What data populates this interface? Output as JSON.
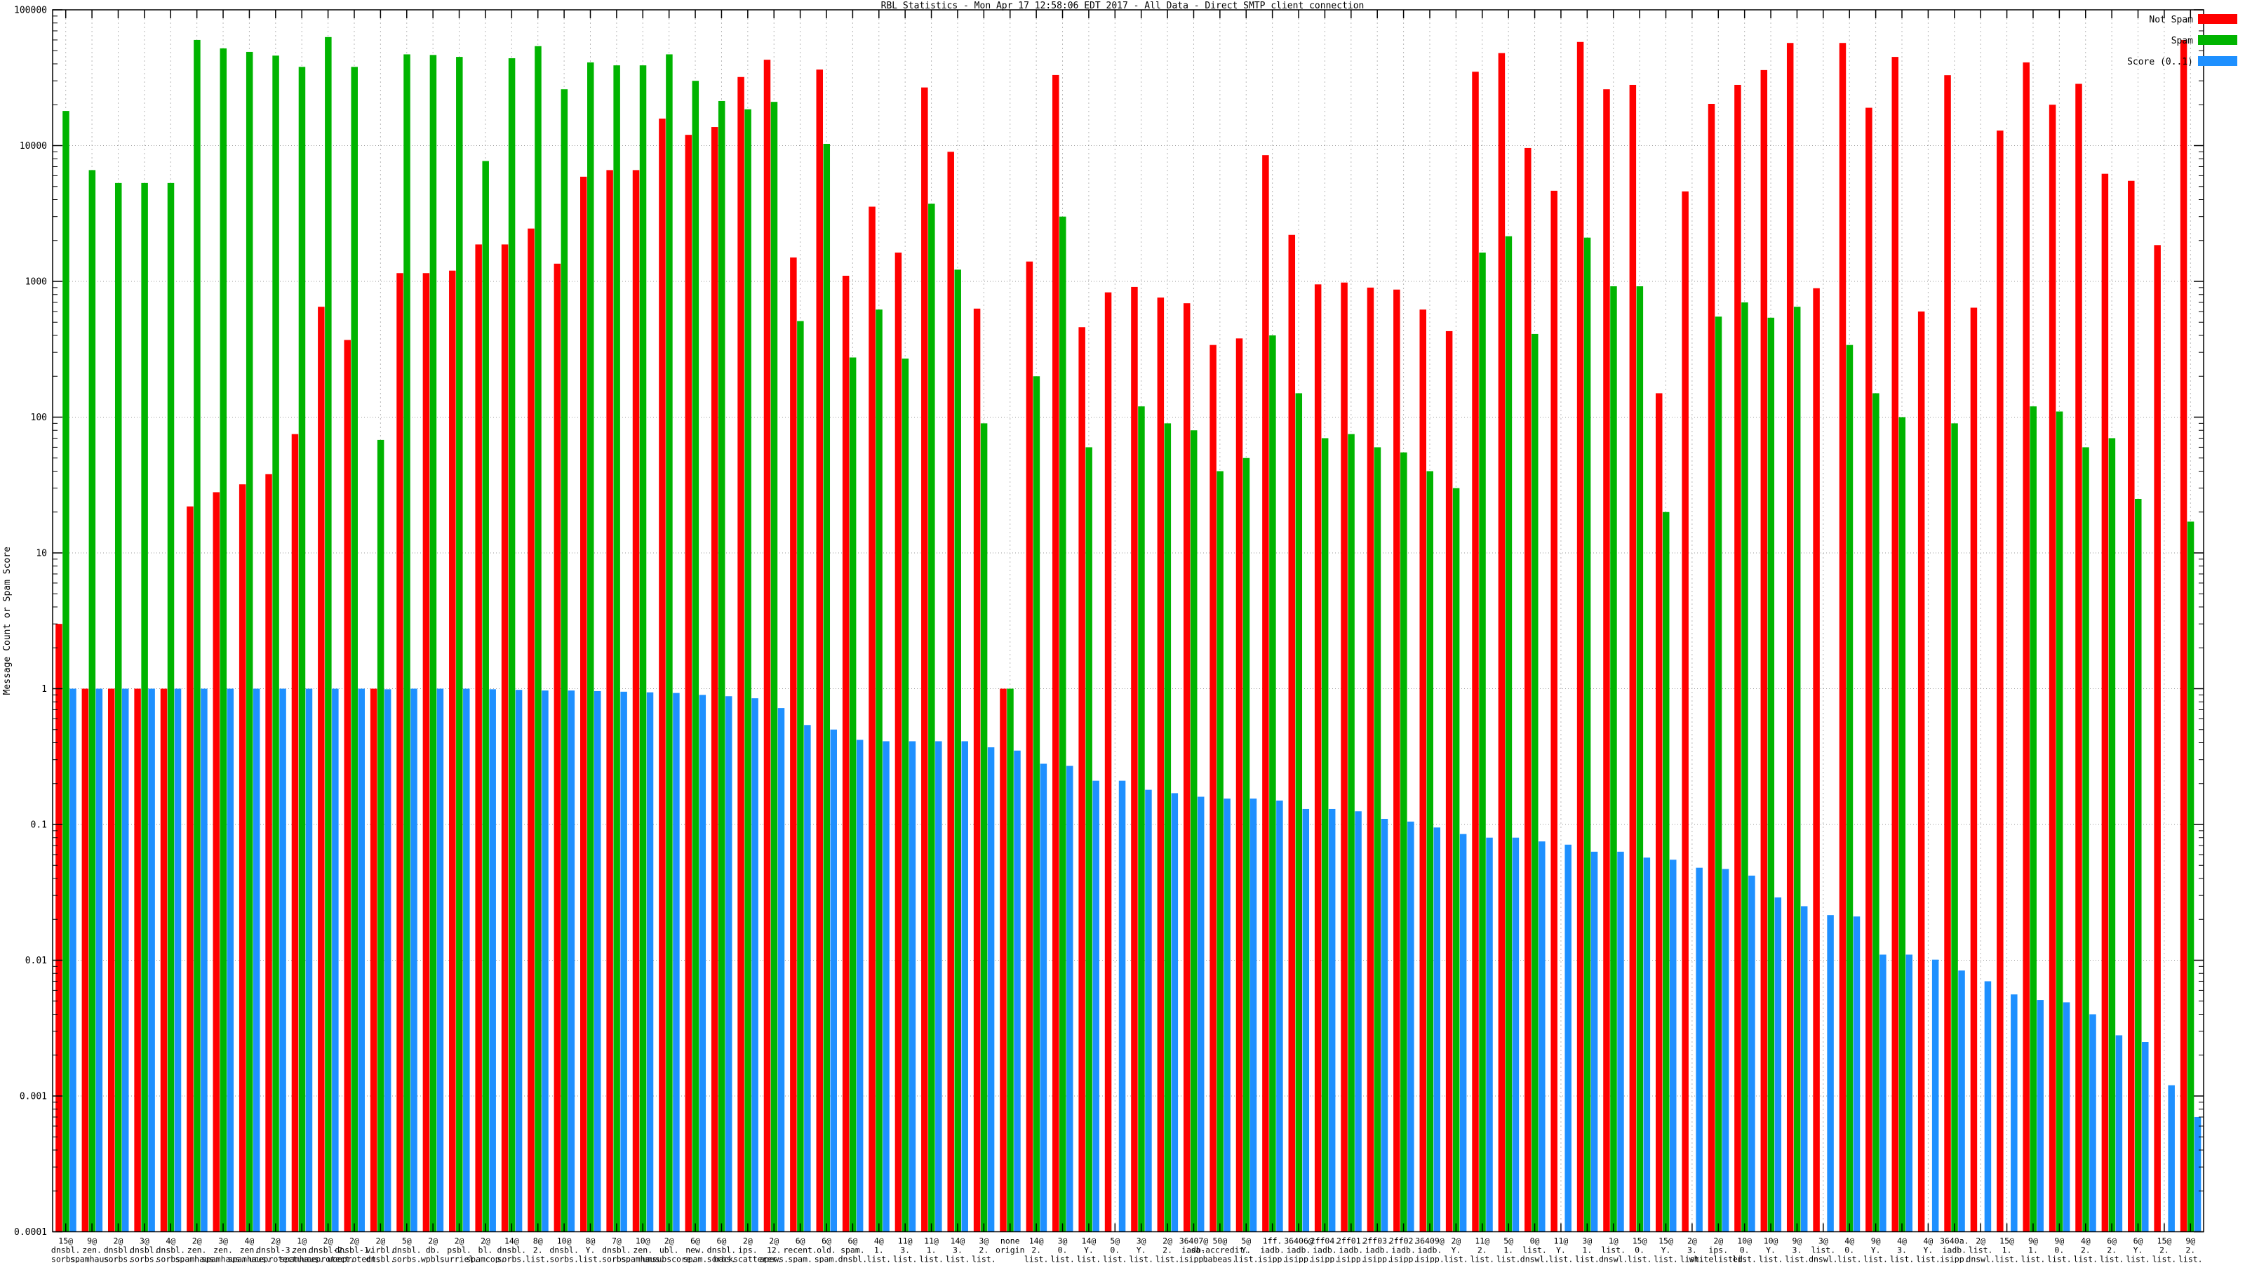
{
  "title": "RBL Statistics - Mon Apr 17 12:58:06 EDT 2017 - All Data - Direct SMTP client connection",
  "ylabel": "Message Count or Spam Score",
  "legend": [
    {
      "label": "Not Spam",
      "color": "#ff0000",
      "series": "not_spam"
    },
    {
      "label": "Spam",
      "color": "#00b400",
      "series": "spam"
    },
    {
      "label": "Score (0..1)",
      "color": "#1e90ff",
      "series": "score"
    }
  ],
  "chart_data": {
    "type": "bar",
    "yscale": "log",
    "ylim": [
      0.0001,
      100000
    ],
    "ytick_labels": [
      "100000",
      "10000",
      "1000",
      "100",
      "10",
      "1",
      "0.1",
      "0.01",
      "0.001",
      "0.0001"
    ],
    "grid": true,
    "legend_position": "top-right",
    "xlabel_suffix": "origin",
    "series_names": [
      "not_spam",
      "spam",
      "score"
    ],
    "categories": [
      {
        "label": "15@dnsbl.sorbs.net",
        "not_spam": 3,
        "spam": 18000,
        "score": 1.0
      },
      {
        "label": "9@zen.spamhaus.org",
        "not_spam": 1,
        "spam": 6600,
        "score": 1.0
      },
      {
        "label": "2@dnsbl.sorbs.net",
        "not_spam": 1,
        "spam": 5300,
        "score": 1.0
      },
      {
        "label": "3@dnsbl.sorbs.net",
        "not_spam": 1,
        "spam": 5300,
        "score": 1.0
      },
      {
        "label": "4@dnsbl.sorbs.net",
        "not_spam": 1,
        "spam": 5300,
        "score": 1.0
      },
      {
        "label": "2@zen.spamhaus.org",
        "not_spam": 22,
        "spam": 60000,
        "score": 1.0
      },
      {
        "label": "3@zen.spamhaus.org",
        "not_spam": 28,
        "spam": 52000,
        "score": 1.0
      },
      {
        "label": "4@zen.spamhaus.org",
        "not_spam": 32,
        "spam": 49000,
        "score": 1.0
      },
      {
        "label": "2@dnsbl-3.uceprotect.net",
        "not_spam": 38,
        "spam": 46000,
        "score": 1.0
      },
      {
        "label": "1@zen.spamhaus.org",
        "not_spam": 75,
        "spam": 38000,
        "score": 1.0
      },
      {
        "label": "2@dnsbl-2.uceprotect.net",
        "not_spam": 650,
        "spam": 63000,
        "score": 1.0
      },
      {
        "label": "2@dnsbl-1.uceprotect.net",
        "not_spam": 370,
        "spam": 38000,
        "score": 1.0
      },
      {
        "label": "2@virbl.dnsbl.bit.nl",
        "not_spam": 1,
        "spam": 68,
        "score": 0.99
      },
      {
        "label": "5@dnsbl.sorbs.net",
        "not_spam": 1150,
        "spam": 47000,
        "score": 1.0
      },
      {
        "label": "2@db.wpbl.info",
        "not_spam": 1150,
        "spam": 46500,
        "score": 1.0
      },
      {
        "label": "2@psbl.surriel.com",
        "not_spam": 1200,
        "spam": 45000,
        "score": 1.0
      },
      {
        "label": "2@bl.spamcop.net",
        "not_spam": 1870,
        "spam": 7700,
        "score": 0.99
      },
      {
        "label": "14@dnsbl.sorbs.net",
        "not_spam": 1870,
        "spam": 44000,
        "score": 0.98
      },
      {
        "label": "8@2.list.dnswl.org",
        "not_spam": 2450,
        "spam": 54000,
        "score": 0.97
      },
      {
        "label": "10@dnsbl.sorbs.net",
        "not_spam": 1350,
        "spam": 26000,
        "score": 0.97
      },
      {
        "label": "8@Y.list.dnswl.org",
        "not_spam": 5900,
        "spam": 41000,
        "score": 0.96
      },
      {
        "label": "7@dnsbl.sorbs.net",
        "not_spam": 6600,
        "spam": 39000,
        "score": 0.95
      },
      {
        "label": "10@zen.spamhaus.org",
        "not_spam": 6600,
        "spam": 39000,
        "score": 0.94
      },
      {
        "label": "2@ubl.unsubscore.com",
        "not_spam": 15800,
        "spam": 47000,
        "score": 0.93
      },
      {
        "label": "6@new.spam.dnsbl.sorbs.net",
        "not_spam": 12000,
        "spam": 30000,
        "score": 0.9
      },
      {
        "label": "6@dnsbl.sorbs.net",
        "not_spam": 13700,
        "spam": 21300,
        "score": 0.88
      },
      {
        "label": "2@ips.backscatterer.org",
        "not_spam": 32000,
        "spam": 18500,
        "score": 0.85
      },
      {
        "label": "2@12.apews.org",
        "not_spam": 42900,
        "spam": 21000,
        "score": 0.72
      },
      {
        "label": "6@recent.spam.dnsbl.sorbs.net",
        "not_spam": 1500,
        "spam": 510,
        "score": 0.54
      },
      {
        "label": "6@old.spam.dnsbl.sorbs.net",
        "not_spam": 36300,
        "spam": 10300,
        "score": 0.5
      },
      {
        "label": "6@spam.dnsbl.sorbs.net",
        "not_spam": 1100,
        "spam": 275,
        "score": 0.42
      },
      {
        "label": "4@1.list.dnswl.org",
        "not_spam": 3550,
        "spam": 620,
        "score": 0.41
      },
      {
        "label": "11@3.list.dnswl.org",
        "not_spam": 1630,
        "spam": 270,
        "score": 0.41
      },
      {
        "label": "11@1.list.dnswl.org",
        "not_spam": 26800,
        "spam": 3730,
        "score": 0.41
      },
      {
        "label": "14@3.list.dnswl.org",
        "not_spam": 9000,
        "spam": 1220,
        "score": 0.41
      },
      {
        "label": "3@2.list.dnswl.org",
        "not_spam": 630,
        "spam": 90,
        "score": 0.37
      },
      {
        "label": "none",
        "not_spam": 1,
        "spam": 1,
        "score": 0.35
      },
      {
        "label": "14@2.list.dnswl.org",
        "not_spam": 1400,
        "spam": 200,
        "score": 0.28
      },
      {
        "label": "3@0.list.dnswl.org",
        "not_spam": 33100,
        "spam": 3000,
        "score": 0.27
      },
      {
        "label": "14@Y.list.dnswl.org",
        "not_spam": 460,
        "spam": 60,
        "score": 0.21
      },
      {
        "label": "5@0.list.dnswl.org",
        "not_spam": 830,
        "spam": 0,
        "score": 0.21
      },
      {
        "label": "3@Y.list.dnswl.org",
        "not_spam": 910,
        "spam": 120,
        "score": 0.18
      },
      {
        "label": "2@2.list.dnswl.org",
        "not_spam": 760,
        "spam": 90,
        "score": 0.17
      },
      {
        "label": "36407@iadb.isipp.com",
        "not_spam": 690,
        "spam": 80,
        "score": 0.16
      },
      {
        "label": "50@sa-accredit.habeas.com",
        "not_spam": 340,
        "spam": 40,
        "score": 0.155
      },
      {
        "label": "5@Y.list.dnswl.org",
        "not_spam": 380,
        "spam": 50,
        "score": 0.155
      },
      {
        "label": "1ff.iadb.isipp.com",
        "not_spam": 8500,
        "spam": 400,
        "score": 0.15
      },
      {
        "label": "36406@iadb.isipp.com",
        "not_spam": 2200,
        "spam": 150,
        "score": 0.13
      },
      {
        "label": "2ff04.iadb.isipp.com",
        "not_spam": 950,
        "spam": 70,
        "score": 0.13
      },
      {
        "label": "2ff01.iadb.isipp.com",
        "not_spam": 980,
        "spam": 75,
        "score": 0.125
      },
      {
        "label": "2ff03.iadb.isipp.com",
        "not_spam": 900,
        "spam": 60,
        "score": 0.11
      },
      {
        "label": "2ff02.iadb.isipp.com",
        "not_spam": 870,
        "spam": 55,
        "score": 0.105
      },
      {
        "label": "36409@iadb.isipp.com",
        "not_spam": 620,
        "spam": 40,
        "score": 0.095
      },
      {
        "label": "2@Y.list.dnswl.org",
        "not_spam": 430,
        "spam": 30,
        "score": 0.085
      },
      {
        "label": "11@2.list.dnswl.org",
        "not_spam": 35000,
        "spam": 1630,
        "score": 0.08
      },
      {
        "label": "5@1.list.dnswl.org",
        "not_spam": 48000,
        "spam": 2150,
        "score": 0.08
      },
      {
        "label": "0@list.dnswl.org",
        "not_spam": 9600,
        "spam": 410,
        "score": 0.075
      },
      {
        "label": "11@Y.list.dnswl.org",
        "not_spam": 4650,
        "spam": 0,
        "score": 0.071
      },
      {
        "label": "3@1.list.dnswl.org",
        "not_spam": 58000,
        "spam": 2100,
        "score": 0.063
      },
      {
        "label": "1@list.dnswl.org",
        "not_spam": 26000,
        "spam": 920,
        "score": 0.063
      },
      {
        "label": "15@0.list.dnswl.org",
        "not_spam": 28000,
        "spam": 920,
        "score": 0.057
      },
      {
        "label": "15@Y.list.dnswl.org",
        "not_spam": 150,
        "spam": 20,
        "score": 0.055
      },
      {
        "label": "2@3.list.dnswl.org",
        "not_spam": 4600,
        "spam": 0,
        "score": 0.048
      },
      {
        "label": "2@ips.whitelisted.org",
        "not_spam": 20300,
        "spam": 550,
        "score": 0.047
      },
      {
        "label": "10@0.list.dnswl.org",
        "not_spam": 28000,
        "spam": 700,
        "score": 0.042
      },
      {
        "label": "10@Y.list.dnswl.org",
        "not_spam": 36000,
        "spam": 540,
        "score": 0.029
      },
      {
        "label": "9@3.list.dnswl.org",
        "not_spam": 57000,
        "spam": 650,
        "score": 0.025
      },
      {
        "label": "3@list.dnswl.org",
        "not_spam": 890,
        "spam": 0,
        "score": 0.0215
      },
      {
        "label": "4@0.list.dnswl.org",
        "not_spam": 57000,
        "spam": 340,
        "score": 0.021
      },
      {
        "label": "9@Y.list.dnswl.org",
        "not_spam": 19000,
        "spam": 150,
        "score": 0.011
      },
      {
        "label": "4@3.list.dnswl.org",
        "not_spam": 45000,
        "spam": 100,
        "score": 0.011
      },
      {
        "label": "4@Y.list.dnswl.org",
        "not_spam": 600,
        "spam": 0,
        "score": 0.0101
      },
      {
        "label": "3640a.iadb.isipp.com",
        "not_spam": 33000,
        "spam": 90,
        "score": 0.0084
      },
      {
        "label": "2@list.dnswl.org",
        "not_spam": 640,
        "spam": 0,
        "score": 0.007
      },
      {
        "label": "15@1.list.dnswl.org",
        "not_spam": 12900,
        "spam": 0,
        "score": 0.0056
      },
      {
        "label": "9@1.list.dnswl.org",
        "not_spam": 41000,
        "spam": 120,
        "score": 0.0051
      },
      {
        "label": "9@0.list.dnswl.org",
        "not_spam": 20000,
        "spam": 110,
        "score": 0.0049
      },
      {
        "label": "4@2.list.dnswl.org",
        "not_spam": 28500,
        "spam": 60,
        "score": 0.004
      },
      {
        "label": "6@2.list.dnswl.org",
        "not_spam": 6200,
        "spam": 70,
        "score": 0.0028
      },
      {
        "label": "6@Y.list.dnswl.org",
        "not_spam": 5500,
        "spam": 25,
        "score": 0.0025
      },
      {
        "label": "15@2.list.dnswl.org",
        "not_spam": 1850,
        "spam": 0,
        "score": 0.0012
      },
      {
        "label": "9@2.list.dnswl.org",
        "not_spam": 60000,
        "spam": 17,
        "score": 0.0007
      }
    ]
  }
}
